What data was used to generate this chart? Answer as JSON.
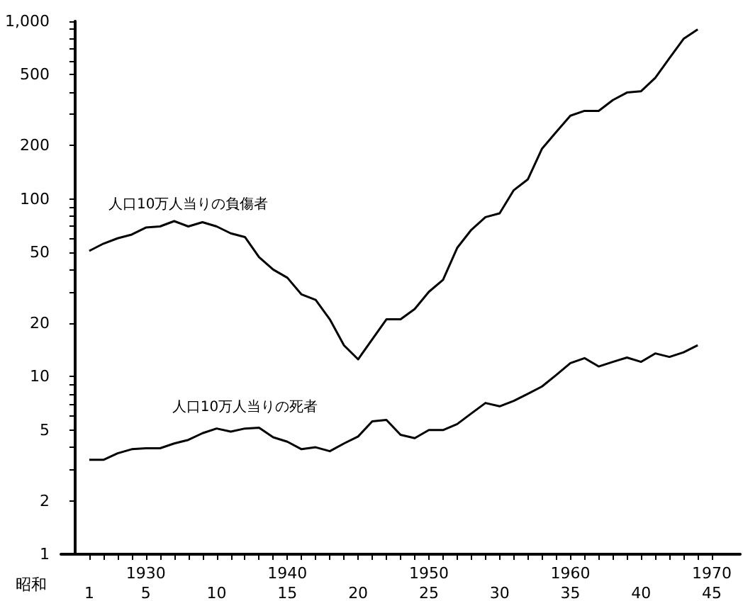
{
  "chart_data": {
    "type": "line",
    "log": "y",
    "grid": false,
    "marker": "none",
    "line_style": "solid",
    "xlim": [
      1924,
      1972
    ],
    "xticks": [
      {
        "value": 1926,
        "label": null
      },
      {
        "value": 1927,
        "label": null
      },
      {
        "value": 1928,
        "label": null
      },
      {
        "value": 1929,
        "label": null
      },
      1930,
      {
        "value": 1931,
        "label": null
      },
      {
        "value": 1932,
        "label": null
      },
      {
        "value": 1933,
        "label": null
      },
      {
        "value": 1934,
        "label": null
      },
      {
        "value": 1935,
        "label": null
      },
      {
        "value": 1936,
        "label": null
      },
      {
        "value": 1937,
        "label": null
      },
      {
        "value": 1938,
        "label": null
      },
      {
        "value": 1939,
        "label": null
      },
      1940,
      {
        "value": 1941,
        "label": null
      },
      {
        "value": 1942,
        "label": null
      },
      {
        "value": 1943,
        "label": null
      },
      {
        "value": 1944,
        "label": null
      },
      {
        "value": 1945,
        "label": null
      },
      {
        "value": 1946,
        "label": null
      },
      {
        "value": 1947,
        "label": null
      },
      {
        "value": 1948,
        "label": null
      },
      {
        "value": 1949,
        "label": null
      },
      1950,
      {
        "value": 1951,
        "label": null
      },
      {
        "value": 1952,
        "label": null
      },
      {
        "value": 1953,
        "label": null
      },
      {
        "value": 1954,
        "label": null
      },
      {
        "value": 1955,
        "label": null
      },
      {
        "value": 1956,
        "label": null
      },
      {
        "value": 1957,
        "label": null
      },
      {
        "value": 1958,
        "label": null
      },
      {
        "value": 1959,
        "label": null
      },
      1960,
      {
        "value": 1961,
        "label": null
      },
      {
        "value": 1962,
        "label": null
      },
      {
        "value": 1963,
        "label": null
      },
      {
        "value": 1964,
        "label": null
      },
      {
        "value": 1965,
        "label": null
      },
      {
        "value": 1966,
        "label": null
      },
      {
        "value": 1967,
        "label": null
      },
      {
        "value": 1968,
        "label": null
      },
      {
        "value": 1969,
        "label": null
      },
      1970
    ],
    "x2label": "昭和",
    "x2lim": [
      -1,
      47
    ],
    "x2ticks": [
      1,
      5,
      10,
      15,
      20,
      25,
      30,
      35,
      40,
      45
    ],
    "ylim": [
      1,
      1000
    ],
    "yticks": [
      1,
      2,
      {
        "value": 3,
        "label": null
      },
      {
        "value": 4,
        "label": null
      },
      5,
      {
        "value": 6,
        "label": null
      },
      {
        "value": 7,
        "label": null
      },
      {
        "value": 8,
        "label": null
      },
      {
        "value": 9,
        "label": null
      },
      10,
      20,
      {
        "value": 30,
        "label": null
      },
      {
        "value": 40,
        "label": null
      },
      50,
      {
        "value": 60,
        "label": null
      },
      {
        "value": 70,
        "label": null
      },
      {
        "value": 80,
        "label": null
      },
      {
        "value": 90,
        "label": null
      },
      100,
      200,
      {
        "value": 300,
        "label": null
      },
      {
        "value": 400,
        "label": null
      },
      500,
      {
        "value": 600,
        "label": null
      },
      {
        "value": 700,
        "label": null
      },
      {
        "value": 800,
        "label": null
      },
      {
        "value": 900,
        "label": null
      },
      {
        "value": 1000,
        "label": "1,000"
      }
    ],
    "series": [
      {
        "name": "人口10万人当りの負傷者",
        "color": "#000000",
        "x": [
          1926,
          1927,
          1928,
          1929,
          1930,
          1931,
          1932,
          1933,
          1934,
          1935,
          1936,
          1937,
          1938,
          1939,
          1940,
          1941,
          1942,
          1943,
          1944,
          1945,
          1947,
          1948,
          1949,
          1950,
          1951,
          1952,
          1953,
          1954,
          1955,
          1956,
          1957,
          1958,
          1959,
          1960,
          1961,
          1962,
          1963,
          1964,
          1965,
          1966,
          1967,
          1968,
          1969
        ],
        "values": [
          51,
          56,
          60,
          63,
          69,
          70,
          75,
          70,
          74,
          70,
          64,
          61,
          47,
          40,
          36,
          29,
          27,
          21,
          15,
          12.5,
          21,
          21,
          24,
          30,
          35,
          53,
          67,
          79,
          83,
          112,
          129,
          192,
          238,
          294,
          313,
          313,
          360,
          397,
          404,
          480,
          620,
          796,
          900
        ]
      },
      {
        "name": "人口10万人当りの死者",
        "color": "#000000",
        "x": [
          1926,
          1927,
          1928,
          1929,
          1930,
          1931,
          1932,
          1933,
          1934,
          1935,
          1936,
          1937,
          1938,
          1939,
          1940,
          1941,
          1942,
          1943,
          1944,
          1945,
          1946,
          1947,
          1948,
          1949,
          1950,
          1951,
          1952,
          1953,
          1954,
          1955,
          1956,
          1957,
          1958,
          1959,
          1960,
          1961,
          1962,
          1963,
          1964,
          1965,
          1966,
          1967,
          1968,
          1969
        ],
        "values": [
          3.4,
          3.4,
          3.7,
          3.9,
          3.95,
          3.95,
          4.2,
          4.4,
          4.8,
          5.1,
          4.9,
          5.1,
          5.15,
          4.55,
          4.3,
          3.9,
          4.0,
          3.8,
          4.2,
          4.6,
          5.6,
          5.7,
          4.7,
          4.5,
          5.0,
          5.0,
          5.4,
          6.2,
          7.1,
          6.8,
          7.3,
          8.0,
          8.8,
          10.2,
          11.9,
          12.7,
          11.4,
          12.1,
          12.8,
          12.1,
          13.5,
          12.9,
          13.7,
          15.0
        ]
      }
    ]
  }
}
